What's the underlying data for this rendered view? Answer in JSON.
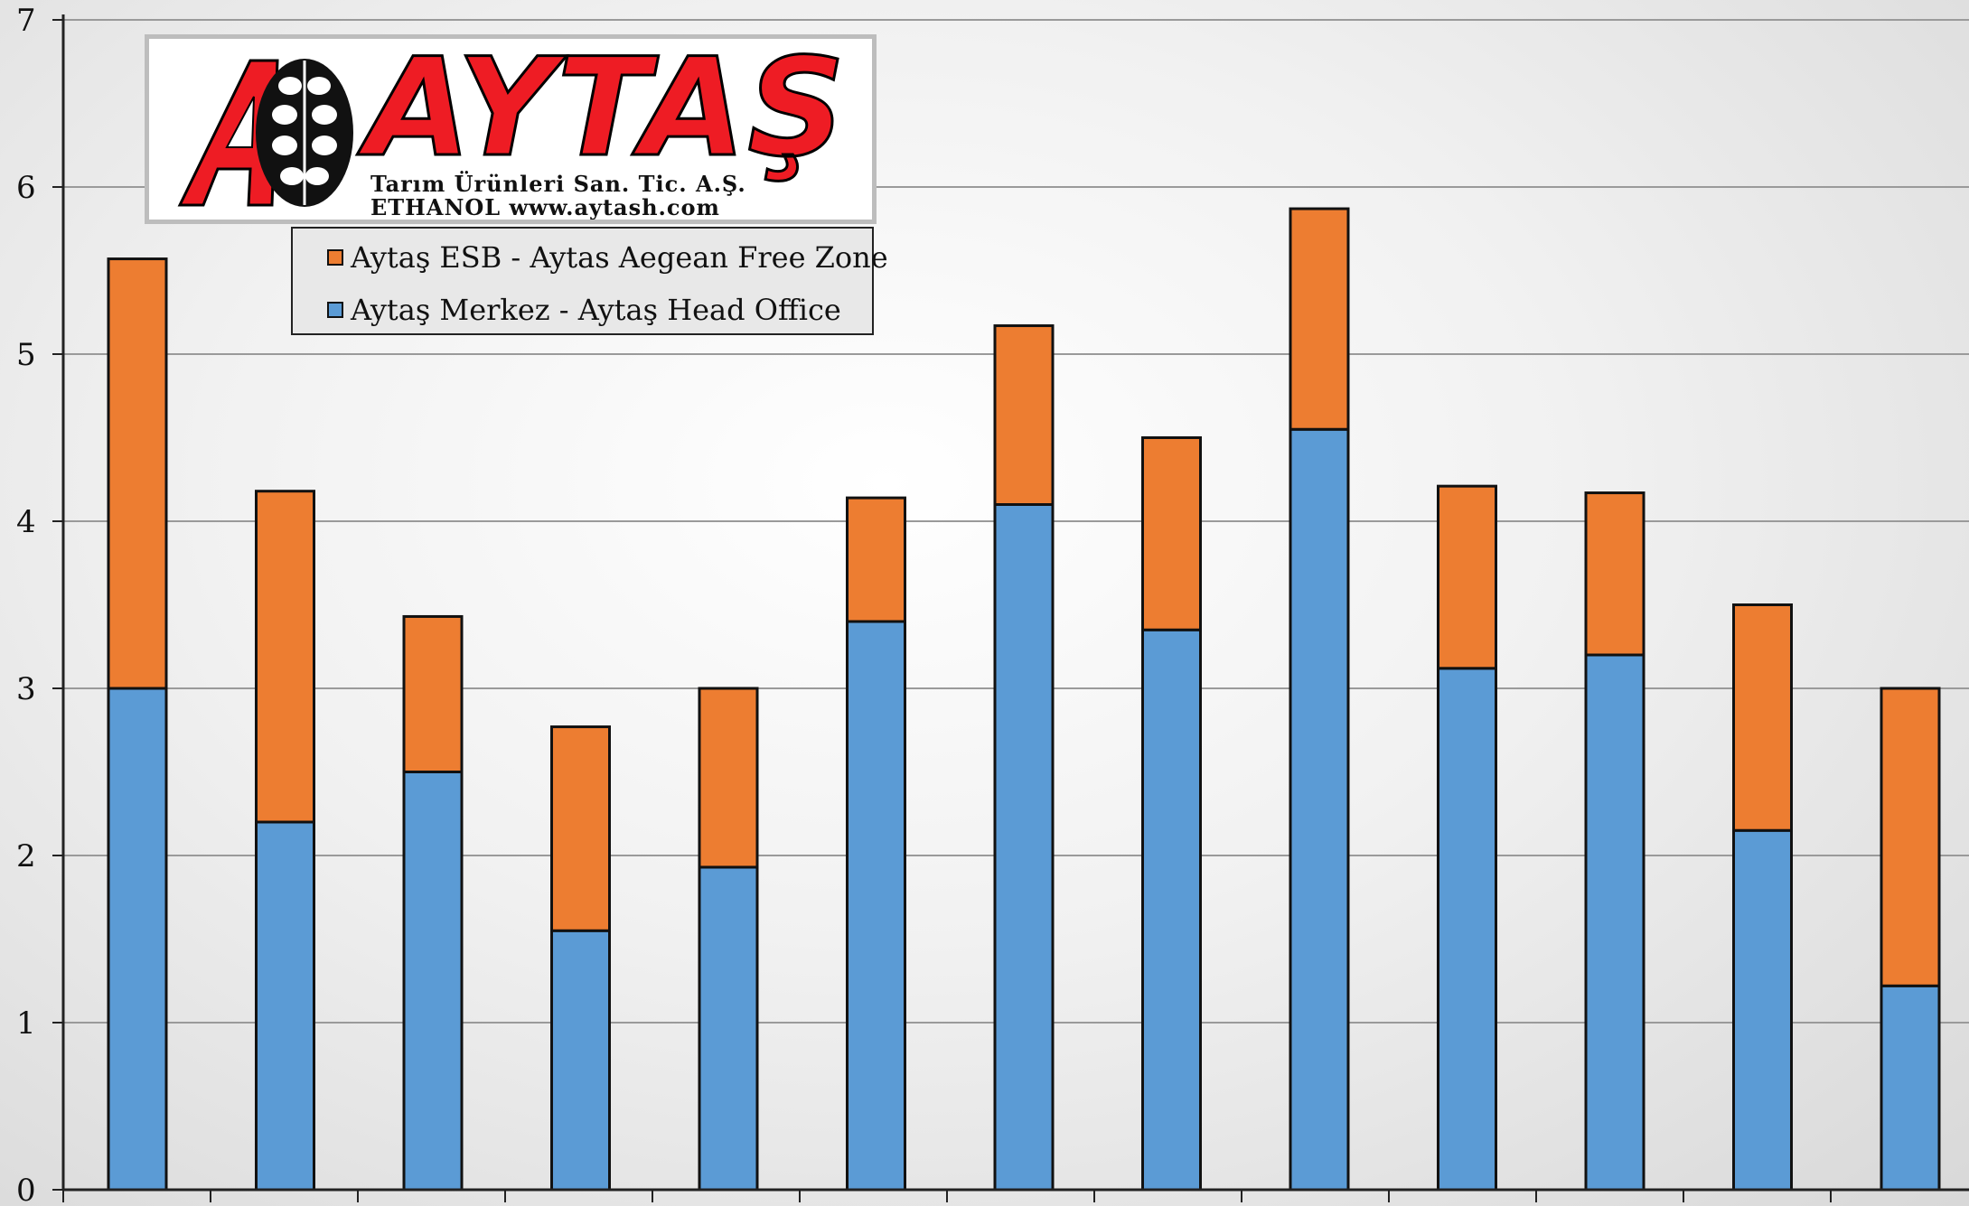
{
  "chart_data": {
    "type": "bar",
    "stacked": true,
    "categories": [
      "",
      "",
      "",
      "",
      "",
      "",
      "",
      "",
      "",
      "",
      "",
      "",
      ""
    ],
    "series": [
      {
        "name": "Aytaş Merkez - Aytaş Head Office",
        "color": "#5b9bd5",
        "values": [
          3.0,
          2.2,
          2.5,
          1.55,
          1.93,
          3.4,
          4.1,
          3.35,
          4.55,
          3.12,
          3.2,
          2.15,
          1.22
        ]
      },
      {
        "name": "Aytaş ESB - Aytas Aegean Free Zone",
        "color": "#ed7d31",
        "values": [
          2.57,
          1.98,
          0.93,
          1.22,
          1.07,
          0.74,
          1.07,
          1.15,
          1.32,
          1.09,
          0.97,
          1.35,
          1.78
        ]
      }
    ],
    "ylim": [
      0,
      7
    ],
    "yticks": [
      "0",
      "1",
      "2",
      "3",
      "4",
      "5",
      "6",
      "7"
    ],
    "grid": true,
    "title": "",
    "xlabel": "",
    "ylabel": "",
    "legend_position": "top-left"
  },
  "legend": {
    "items": [
      {
        "label": "Aytaş ESB - Aytas Aegean Free Zone",
        "color": "#ed7d31"
      },
      {
        "label": "Aytaş Merkez - Aytaş Head Office",
        "color": "#5b9bd5"
      }
    ]
  },
  "logo": {
    "name": "AYTAŞ",
    "subtitle1": "Tarım Ürünleri San. Tic. A.Ş.",
    "subtitle2": "ETHANOL www.aytash.com"
  }
}
